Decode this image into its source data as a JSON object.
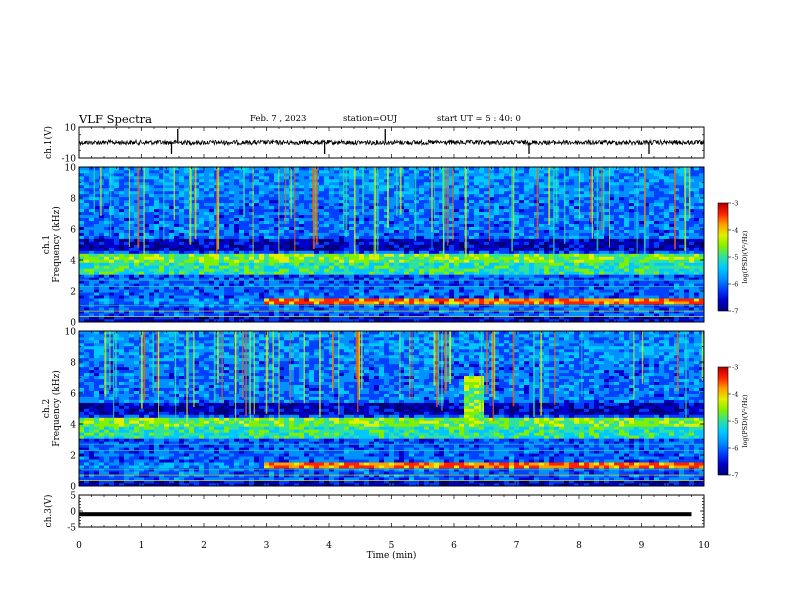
{
  "header": {
    "title": "VLF Spectra",
    "date": "Feb. 7 , 2023",
    "station": "station=OUJ",
    "start_ut": "start  UT =  5 : 40: 0"
  },
  "colors": {
    "spectrogram_palette": [
      "#00007a",
      "#0000c8",
      "#0040ff",
      "#0090ff",
      "#00c8ff",
      "#30e0a0",
      "#80f000",
      "#e0f000",
      "#ffa000",
      "#ff2000",
      "#b00000"
    ],
    "trace": "#000000"
  },
  "chart_data": [
    {
      "type": "line",
      "panel": "ch1-waveform",
      "ylabel": "ch.1(V)",
      "ylim": [
        -10,
        10
      ],
      "yticks": [
        10,
        -10
      ],
      "baseline_v": 0,
      "description_values": {
        "typical_amplitude_v": 1.5,
        "spike_times_min": [
          1.48,
          1.58,
          3.93,
          4.9,
          7.2,
          9.12
        ]
      }
    },
    {
      "type": "heatmap",
      "panel": "ch1-spectrogram",
      "ylabel_top": "ch.1",
      "ylabel": "Frequency (kHz)",
      "ylim": [
        0,
        10
      ],
      "yticks": [
        0,
        2,
        4,
        6,
        8,
        10
      ],
      "colorbar": {
        "label": "log(PSD)(V²/Hz)",
        "range": [
          -7,
          -3
        ],
        "ticks": [
          "-3",
          "-4",
          "-5",
          "-6",
          "-7"
        ]
      },
      "features": {
        "strong_band_khz": [
          1.2,
          1.6
        ],
        "strong_band_start_min": 3.0,
        "hiss_band_khz": [
          3.0,
          4.5
        ],
        "dark_band_khz": [
          4.6,
          5.4
        ]
      }
    },
    {
      "type": "heatmap",
      "panel": "ch2-spectrogram",
      "ylabel_top": "ch.2",
      "ylabel": "Frequency (kHz)",
      "ylim": [
        0,
        10
      ],
      "yticks": [
        0,
        2,
        4,
        6,
        8,
        10
      ],
      "colorbar": {
        "label": "log(PSD)(V²/Hz)",
        "range": [
          -7,
          -3
        ],
        "ticks": [
          "-3",
          "-4",
          "-5",
          "-6",
          "-7"
        ]
      },
      "features": {
        "strong_band_khz": [
          1.2,
          1.6
        ],
        "strong_band_start_min": 3.0,
        "hiss_band_khz": [
          3.0,
          4.5
        ],
        "emission_at_min": 6.35
      }
    },
    {
      "type": "line",
      "panel": "ch3-waveform",
      "ylabel": "ch.3(V)",
      "ylim": [
        -5,
        5
      ],
      "yticks": [
        5,
        0,
        -5
      ],
      "level_v": -1.0,
      "xlabel": "Time (min)",
      "xlim": [
        0,
        10
      ],
      "xticks": [
        0,
        1,
        2,
        3,
        4,
        5,
        6,
        7,
        8,
        9,
        10
      ]
    }
  ]
}
